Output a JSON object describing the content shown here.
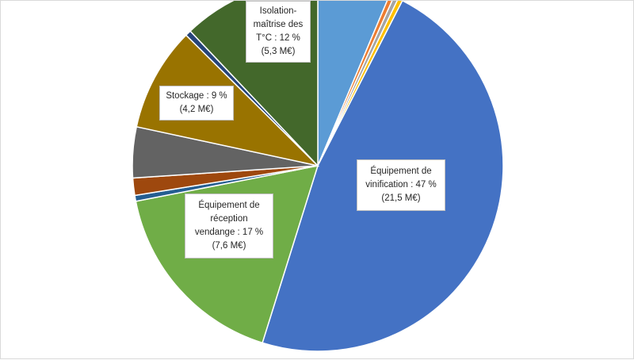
{
  "chart_data": {
    "type": "pie",
    "title": "",
    "slices": [
      {
        "value": 6.3,
        "color": "#5b9bd5"
      },
      {
        "value": 0.4,
        "color": "#ed7d31"
      },
      {
        "value": 0.4,
        "color": "#a5a5a5"
      },
      {
        "value": 0.4,
        "color": "#ffc000"
      },
      {
        "value": 47,
        "color": "#4472c4",
        "label": [
          "Équipement de",
          "vinification : 47 %",
          "(21,5 M€)"
        ]
      },
      {
        "value": 17,
        "color": "#70ad47",
        "label": [
          "Équipement de",
          "réception",
          "vendange : 17 %",
          "(7,6 M€)"
        ]
      },
      {
        "value": 0.5,
        "color": "#255e91"
      },
      {
        "value": 1.5,
        "color": "#9e480e"
      },
      {
        "value": 4.4,
        "color": "#636363"
      },
      {
        "value": 9,
        "color": "#997300",
        "label": [
          "Stockage : 9 %",
          "(4,2 M€)"
        ]
      },
      {
        "value": 0.5,
        "color": "#264478"
      },
      {
        "value": 12,
        "color": "#43682b",
        "label": [
          "Isolation-",
          "maîtrise des",
          "T°C : 12 %",
          "(5,3 M€)"
        ]
      }
    ],
    "start_angle_deg": 0,
    "direction": "clockwise"
  }
}
